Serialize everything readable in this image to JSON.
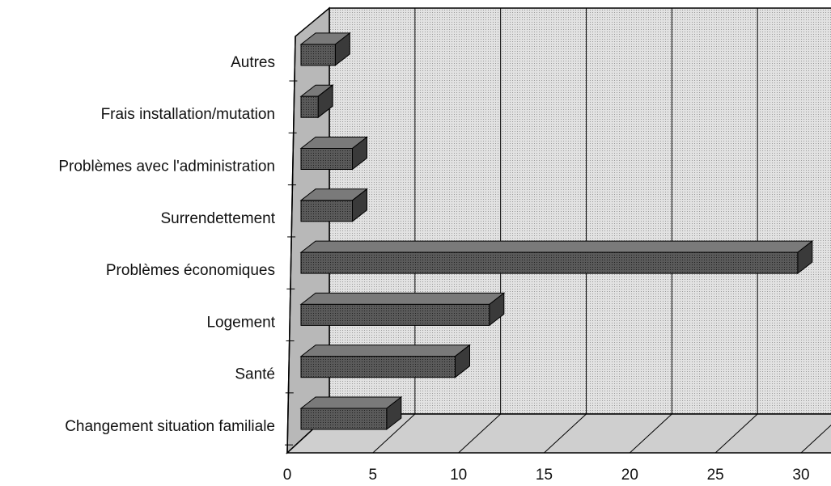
{
  "chart_data": {
    "type": "bar3d",
    "categories": [
      "Changement situation familiale",
      "Santé",
      "Logement",
      "Problèmes économiques",
      "Surrendettement",
      "Problèmes avec l'administration",
      "Frais installation/mutation",
      "Autres"
    ],
    "values": [
      5,
      9,
      11,
      29,
      3,
      3,
      1,
      2
    ],
    "color": "#4a4a4a",
    "xlim": [
      0,
      30
    ],
    "xticks": [
      0,
      5,
      10,
      15,
      20,
      25,
      30
    ],
    "grid": true
  }
}
